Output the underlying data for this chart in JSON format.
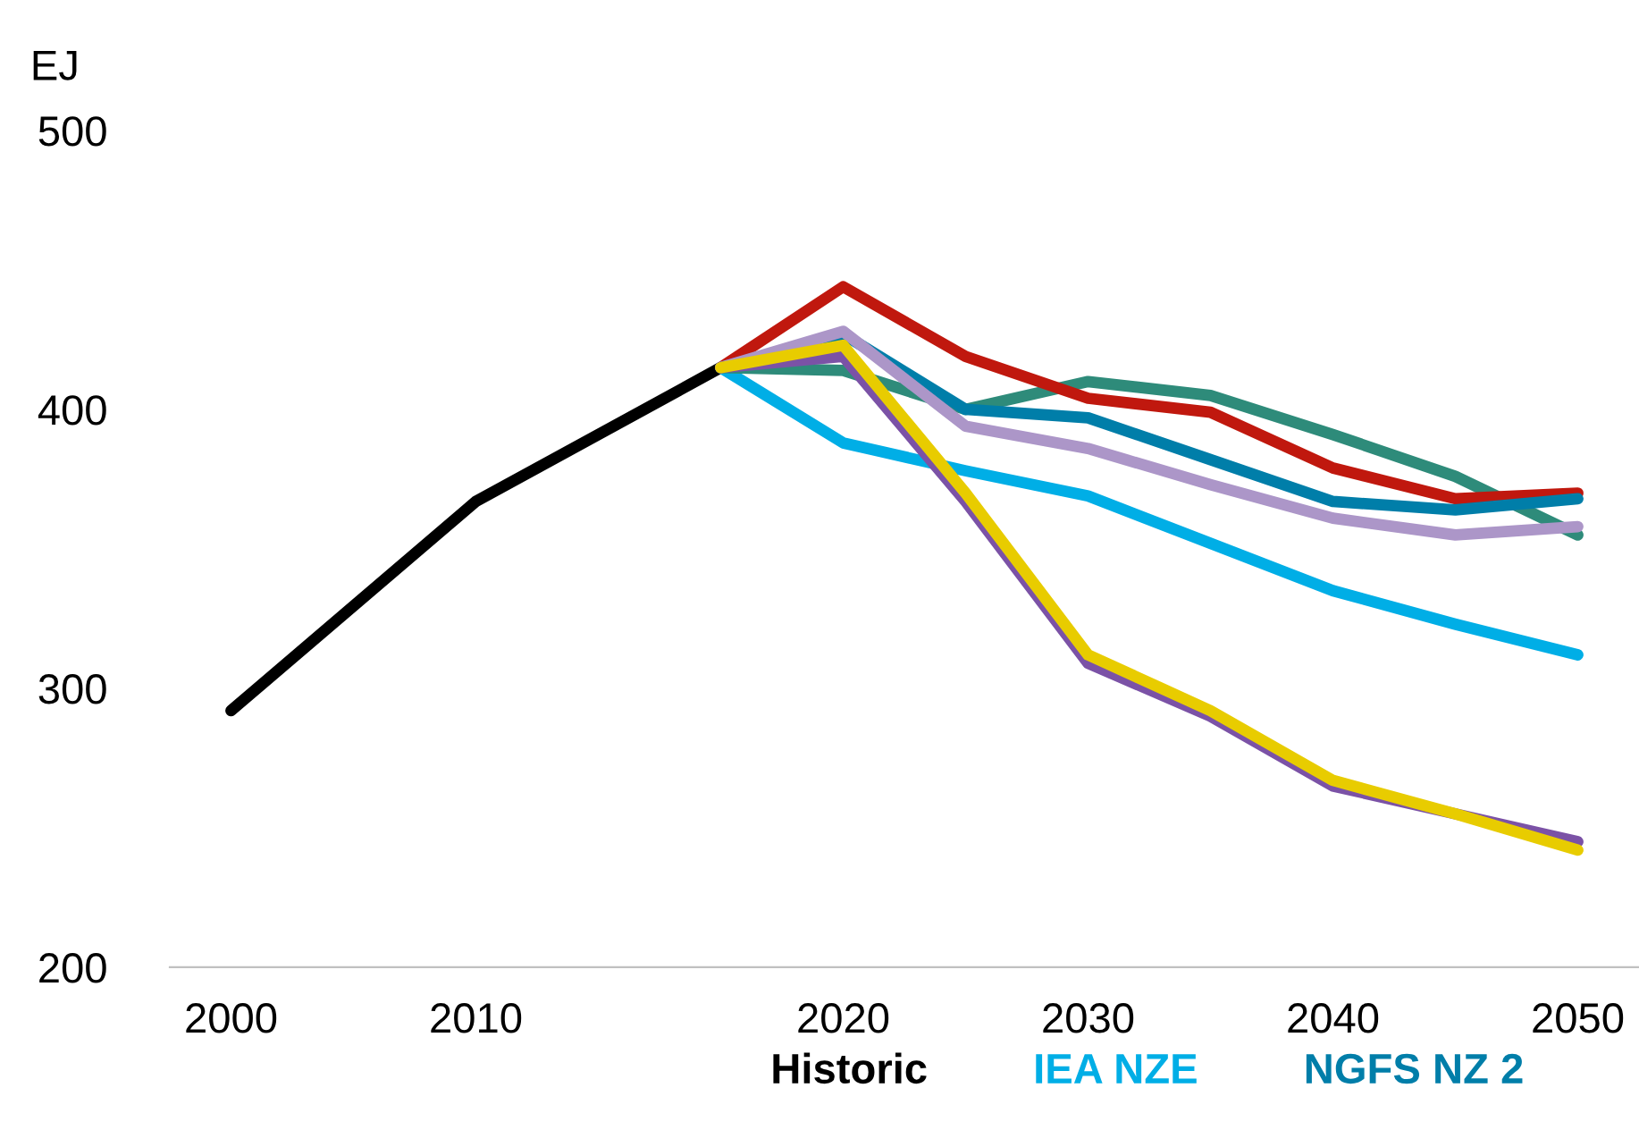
{
  "chart_data": {
    "type": "line",
    "ylabel": "EJ",
    "categories": [
      "2000",
      null,
      "2010",
      null,
      null,
      "2020",
      null,
      "2030",
      null,
      "2040",
      null,
      "2050"
    ],
    "ylim": [
      200,
      500
    ],
    "yticks": [
      200,
      300,
      400,
      500
    ],
    "grid": false,
    "legend": "bottom",
    "line_style": "solid",
    "marker": "none",
    "series": [
      {
        "name": "Historic",
        "color": "#000000",
        "values": [
          292,
          null,
          367,
          null,
          415,
          null,
          null,
          null,
          null,
          null,
          null,
          null
        ]
      },
      {
        "name": "IEA NZE",
        "color": "#00aee6",
        "values": [
          null,
          null,
          null,
          null,
          415,
          388,
          378,
          369,
          352,
          335,
          323,
          312
        ]
      },
      {
        "color": "#2e8b7a",
        "values": [
          null,
          null,
          null,
          null,
          415,
          414,
          400,
          410,
          405,
          391,
          376,
          355
        ]
      },
      {
        "color": "#c0180e",
        "values": [
          null,
          null,
          null,
          null,
          415,
          444,
          419,
          404,
          399,
          379,
          368,
          370
        ]
      },
      {
        "name": "NGFS NZ 2",
        "color": "#007ea9",
        "values": [
          null,
          null,
          null,
          null,
          415,
          427,
          400,
          397,
          382,
          367,
          364,
          368
        ]
      },
      {
        "color": "#ac96c8",
        "values": [
          null,
          null,
          null,
          null,
          415,
          428,
          394,
          386,
          373,
          361,
          355,
          358
        ]
      },
      {
        "color": "#7b52a6",
        "values": [
          null,
          null,
          null,
          null,
          415,
          419,
          367,
          309,
          290,
          265,
          255,
          245
        ]
      },
      {
        "color": "#e8cc00",
        "values": [
          null,
          null,
          null,
          null,
          415,
          423,
          370,
          312,
          292,
          267,
          255,
          242
        ]
      }
    ]
  }
}
